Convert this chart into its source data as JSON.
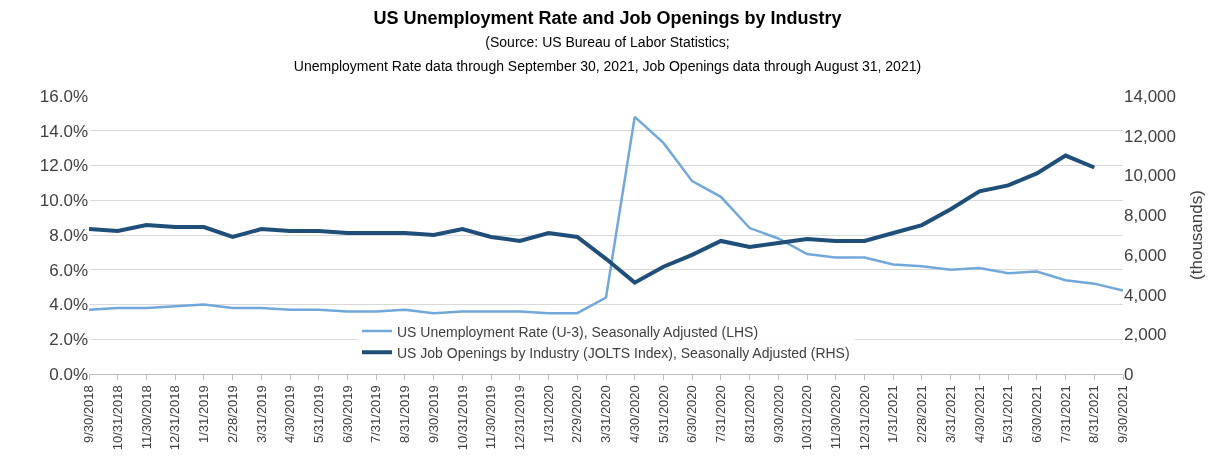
{
  "chart_data": {
    "type": "line",
    "title": "US Unemployment Rate and Job Openings by Industry",
    "subtitle": "(Source: US Bureau of Labor Statistics;\nUnemployment Rate data through September 30, 2021, Job Openings data through August 31, 2021)",
    "y2label": "(thousands)",
    "categories": [
      "9/30/2018",
      "10/31/2018",
      "11/30/2018",
      "12/31/2018",
      "1/31/2019",
      "2/28/2019",
      "3/31/2019",
      "4/30/2019",
      "5/31/2019",
      "6/30/2019",
      "7/31/2019",
      "8/31/2019",
      "9/30/2019",
      "10/31/2019",
      "11/30/2019",
      "12/31/2019",
      "1/31/2020",
      "2/29/2020",
      "3/31/2020",
      "4/30/2020",
      "5/31/2020",
      "6/30/2020",
      "7/31/2020",
      "8/31/2020",
      "9/30/2020",
      "10/31/2020",
      "11/30/2020",
      "12/31/2020",
      "1/31/2021",
      "2/28/2021",
      "3/31/2021",
      "4/30/2021",
      "5/31/2021",
      "6/30/2021",
      "7/31/2021",
      "8/31/2021",
      "9/30/2021"
    ],
    "series": [
      {
        "name": "US Unemployment Rate (U-3), Seasonally Adjusted (LHS)",
        "color": "#72a7d9",
        "values": [
          3.7,
          3.8,
          3.8,
          3.9,
          4.0,
          3.8,
          3.8,
          3.7,
          3.7,
          3.6,
          3.6,
          3.7,
          3.5,
          3.6,
          3.6,
          3.6,
          3.5,
          3.5,
          4.4,
          14.8,
          13.3,
          11.1,
          10.2,
          8.4,
          7.8,
          6.9,
          6.7,
          6.7,
          6.3,
          6.2,
          6.0,
          6.1,
          5.8,
          5.9,
          5.4,
          5.2,
          4.8
        ]
      },
      {
        "name": "US Job Openings by Industry (JOLTS Index), Seasonally Adjusted (RHS)",
        "color": "#1f4e79",
        "axis": "y2",
        "values": [
          7300,
          7200,
          7500,
          7400,
          7400,
          6900,
          7300,
          7200,
          7200,
          7100,
          7100,
          7100,
          7000,
          7300,
          6900,
          6700,
          7100,
          6900,
          5800,
          4600,
          5400,
          6000,
          6700,
          6400,
          6600,
          6800,
          6700,
          6700,
          7100,
          7500,
          8300,
          9200,
          9500,
          10100,
          11000,
          10400,
          null
        ]
      }
    ],
    "ylim": [
      0,
      16
    ],
    "yticks": [
      {
        "value": 0,
        "label": "0.0%"
      },
      {
        "value": 2,
        "label": "2.0%"
      },
      {
        "value": 4,
        "label": "4.0%"
      },
      {
        "value": 6,
        "label": "6.0%"
      },
      {
        "value": 8,
        "label": "8.0%"
      },
      {
        "value": 10,
        "label": "10.0%"
      },
      {
        "value": 12,
        "label": "12.0%"
      },
      {
        "value": 14,
        "label": "14.0%"
      },
      {
        "value": 16,
        "label": "16.0%"
      }
    ],
    "y2lim": [
      0,
      14000
    ],
    "y2ticks": [
      0,
      {
        "value": 2000,
        "label": "2,000"
      },
      {
        "value": 4000,
        "label": "4,000"
      },
      {
        "value": 6000,
        "label": "6,000"
      },
      {
        "value": 8000,
        "label": "8,000"
      },
      {
        "value": 10000,
        "label": "10,000"
      },
      {
        "value": 12000,
        "label": "12,000"
      },
      {
        "value": 14000,
        "label": "14,000"
      }
    ],
    "grid": "y",
    "legend": "bottom",
    "line_style": "solid",
    "marker": "none"
  }
}
